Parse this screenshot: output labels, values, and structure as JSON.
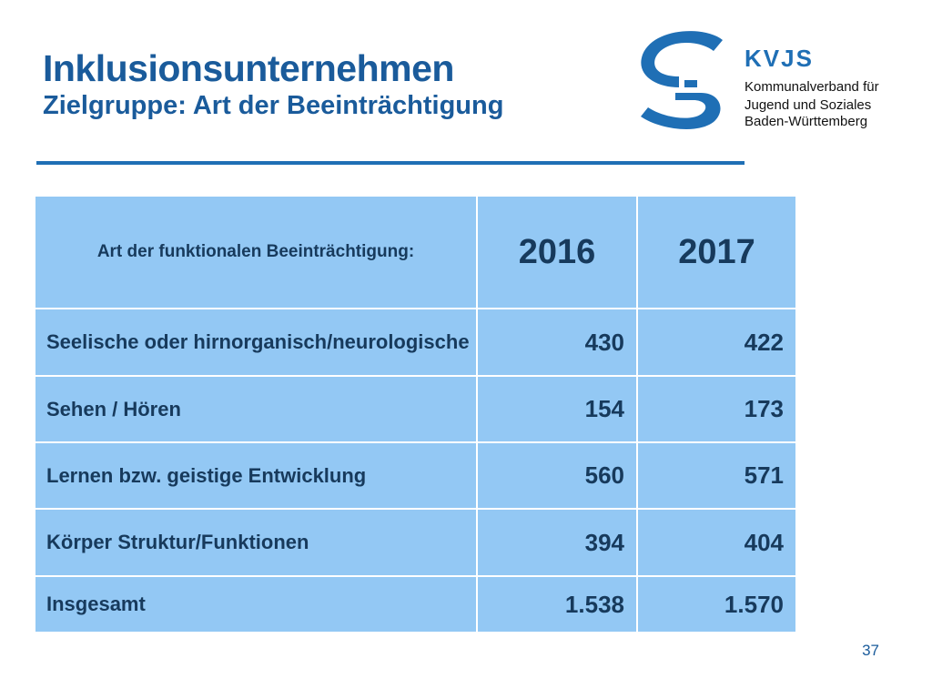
{
  "slide": {
    "title": "Inklusionsunternehmen",
    "subtitle": "Zielgruppe: Art der Beeinträchtigung",
    "page_number": "37"
  },
  "logo": {
    "brand": "KVJS",
    "lines": [
      "Kommunalverband für",
      "Jugend und Soziales",
      "Baden-Württemberg"
    ],
    "mark_icon": "kvjs-s-mark-icon"
  },
  "table": {
    "header": {
      "label": "Art der funktionalen Beeinträchtigung:",
      "years": [
        "2016",
        "2017"
      ]
    },
    "rows": [
      {
        "label": "Seelische oder hirnorganisch/neurologische",
        "v2016": "430",
        "v2017": "422"
      },
      {
        "label": "Sehen / Hören",
        "v2016": "154",
        "v2017": "173"
      },
      {
        "label": "Lernen bzw. geistige Entwicklung",
        "v2016": "560",
        "v2017": "571"
      },
      {
        "label": "Körper Struktur/Funktionen",
        "v2016": "394",
        "v2017": "404"
      },
      {
        "label": "Insgesamt",
        "v2016": "1.538",
        "v2017": "1.570"
      }
    ]
  },
  "colors": {
    "title": "#1a5b9b",
    "accent": "#1f6fb5",
    "table_fill": "#93c8f4",
    "table_text": "#173a5c"
  }
}
